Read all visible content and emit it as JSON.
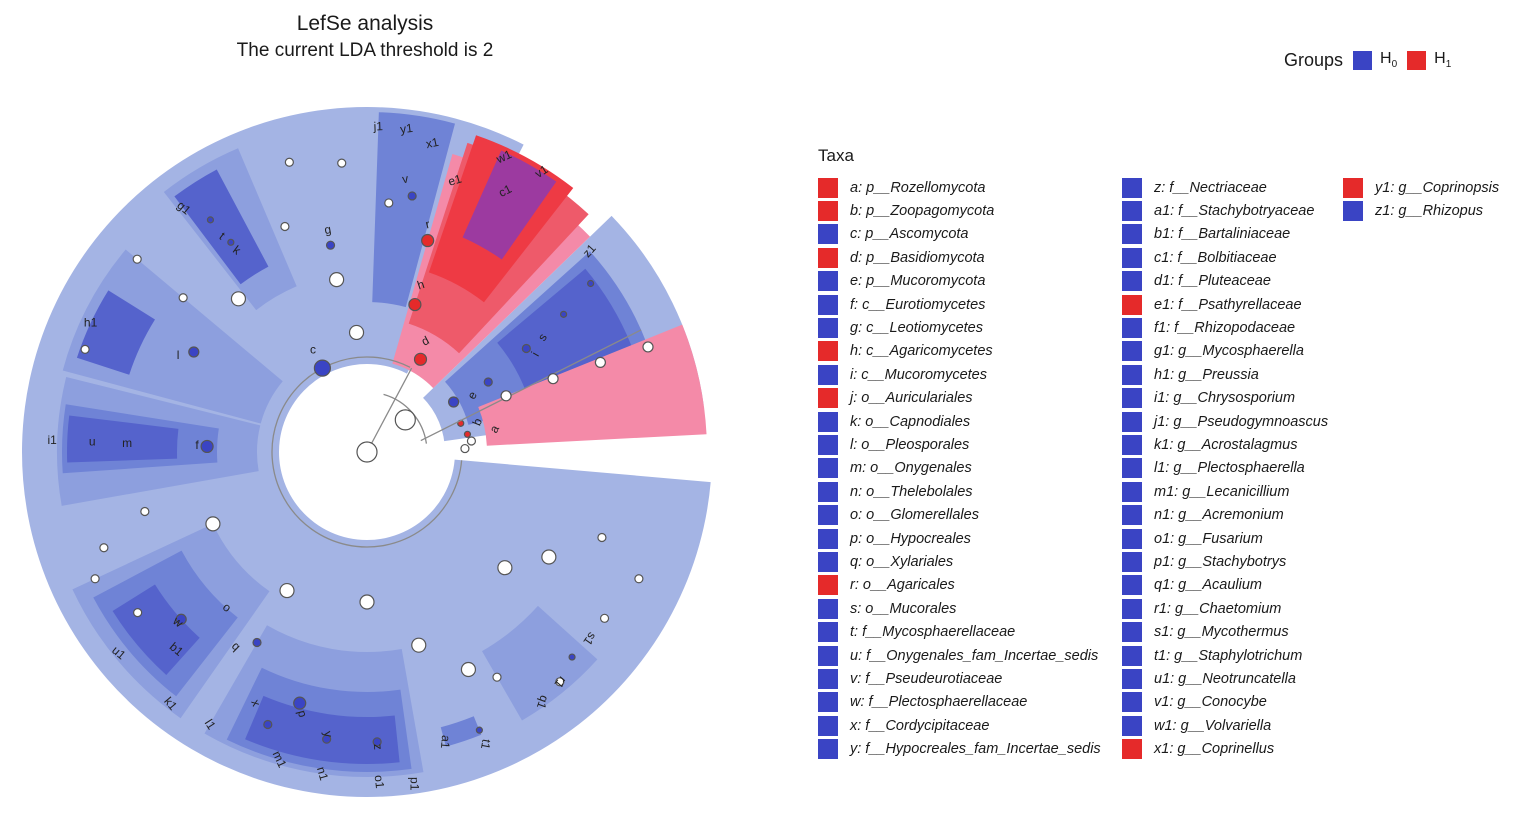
{
  "title": "LefSe analysis",
  "subtitle": "The current LDA threshold is 2",
  "legend": {
    "label": "Groups",
    "groups": [
      {
        "name": "H",
        "sub": "0",
        "color": "#3a44c4"
      },
      {
        "name": "H",
        "sub": "1",
        "color": "#e52a2a"
      }
    ]
  },
  "taxa_title": "Taxa",
  "colors": {
    "H0": "#3a44c4",
    "H1": "#e52a2a",
    "background": "#a4b4e4"
  },
  "taxa_columns": [
    [
      {
        "text": "a: p__Rozellomycota",
        "group": "H1"
      },
      {
        "text": "b: p__Zoopagomycota",
        "group": "H1"
      },
      {
        "text": "c: p__Ascomycota",
        "group": "H0"
      },
      {
        "text": "d: p__Basidiomycota",
        "group": "H1"
      },
      {
        "text": "e: p__Mucoromycota",
        "group": "H0"
      },
      {
        "text": "f: c__Eurotiomycetes",
        "group": "H0"
      },
      {
        "text": "g: c__Leotiomycetes",
        "group": "H0"
      },
      {
        "text": "h: c__Agaricomycetes",
        "group": "H1"
      },
      {
        "text": "i: c__Mucoromycetes",
        "group": "H0"
      },
      {
        "text": "j: o__Auriculariales",
        "group": "H1"
      },
      {
        "text": "k: o__Capnodiales",
        "group": "H0"
      },
      {
        "text": "l: o__Pleosporales",
        "group": "H0"
      },
      {
        "text": "m: o__Onygenales",
        "group": "H0"
      },
      {
        "text": "n: o__Thelebolales",
        "group": "H0"
      },
      {
        "text": "o: o__Glomerellales",
        "group": "H0"
      },
      {
        "text": "p: o__Hypocreales",
        "group": "H0"
      },
      {
        "text": "q: o__Xylariales",
        "group": "H0"
      },
      {
        "text": "r: o__Agaricales",
        "group": "H1"
      },
      {
        "text": "s: o__Mucorales",
        "group": "H0"
      },
      {
        "text": "t: f__Mycosphaerellaceae",
        "group": "H0"
      },
      {
        "text": "u: f__Onygenales_fam_Incertae_sedis",
        "group": "H0"
      },
      {
        "text": "v: f__Pseudeurotiaceae",
        "group": "H0"
      },
      {
        "text": "w: f__Plectosphaerellaceae",
        "group": "H0"
      },
      {
        "text": "x: f__Cordycipitaceae",
        "group": "H0"
      },
      {
        "text": "y: f__Hypocreales_fam_Incertae_sedis",
        "group": "H0"
      }
    ],
    [
      {
        "text": "z: f__Nectriaceae",
        "group": "H0"
      },
      {
        "text": "a1: f__Stachybotryaceae",
        "group": "H0"
      },
      {
        "text": "b1: f__Bartaliniaceae",
        "group": "H0"
      },
      {
        "text": "c1: f__Bolbitiaceae",
        "group": "H0"
      },
      {
        "text": "d1: f__Pluteaceae",
        "group": "H0"
      },
      {
        "text": "e1: f__Psathyrellaceae",
        "group": "H1"
      },
      {
        "text": "f1: f__Rhizopodaceae",
        "group": "H0"
      },
      {
        "text": "g1: g__Mycosphaerella",
        "group": "H0"
      },
      {
        "text": "h1: g__Preussia",
        "group": "H0"
      },
      {
        "text": "i1: g__Chrysosporium",
        "group": "H0"
      },
      {
        "text": "j1: g__Pseudogymnoascus",
        "group": "H0"
      },
      {
        "text": "k1: g__Acrostalagmus",
        "group": "H0"
      },
      {
        "text": "l1: g__Plectosphaerella",
        "group": "H0"
      },
      {
        "text": "m1: g__Lecanicillium",
        "group": "H0"
      },
      {
        "text": "n1: g__Acremonium",
        "group": "H0"
      },
      {
        "text": "o1: g__Fusarium",
        "group": "H0"
      },
      {
        "text": "p1: g__Stachybotrys",
        "group": "H0"
      },
      {
        "text": "q1: g__Acaulium",
        "group": "H0"
      },
      {
        "text": "r1: g__Chaetomium",
        "group": "H0"
      },
      {
        "text": "s1: g__Mycothermus",
        "group": "H0"
      },
      {
        "text": "t1: g__Staphylotrichum",
        "group": "H0"
      },
      {
        "text": "u1: g__Neotruncatella",
        "group": "H0"
      },
      {
        "text": "v1: g__Conocybe",
        "group": "H0"
      },
      {
        "text": "w1: g__Volvariella",
        "group": "H0"
      },
      {
        "text": "x1: g__Coprinellus",
        "group": "H1"
      }
    ],
    [
      {
        "text": "y1: g__Coprinopsis",
        "group": "H1"
      },
      {
        "text": "z1: g__Rhizopus",
        "group": "H0"
      }
    ]
  ],
  "cladogram": {
    "node_labels": [
      {
        "id": "a",
        "group": "H1"
      },
      {
        "id": "b",
        "group": "H1"
      },
      {
        "id": "c",
        "group": "H0"
      },
      {
        "id": "d",
        "group": "H1"
      },
      {
        "id": "e",
        "group": "H0"
      },
      {
        "id": "f",
        "group": "H0"
      },
      {
        "id": "g",
        "group": "H0"
      },
      {
        "id": "h",
        "group": "H1"
      },
      {
        "id": "i",
        "group": "H0"
      },
      {
        "id": "j",
        "group": "H1"
      },
      {
        "id": "k",
        "group": "H0"
      },
      {
        "id": "l",
        "group": "H0"
      },
      {
        "id": "m",
        "group": "H0"
      },
      {
        "id": "n",
        "group": "H0"
      },
      {
        "id": "o",
        "group": "H0"
      },
      {
        "id": "p",
        "group": "H0"
      },
      {
        "id": "q",
        "group": "H0"
      },
      {
        "id": "r",
        "group": "H1"
      },
      {
        "id": "s",
        "group": "H0"
      },
      {
        "id": "t",
        "group": "H0"
      },
      {
        "id": "u",
        "group": "H0"
      },
      {
        "id": "v",
        "group": "H0"
      },
      {
        "id": "w",
        "group": "H0"
      },
      {
        "id": "x",
        "group": "H0"
      },
      {
        "id": "y",
        "group": "H0"
      },
      {
        "id": "z",
        "group": "H0"
      },
      {
        "id": "a1",
        "group": "H0"
      },
      {
        "id": "b1",
        "group": "H0"
      },
      {
        "id": "c1",
        "group": "H0"
      },
      {
        "id": "d1",
        "group": "H0"
      },
      {
        "id": "e1",
        "group": "H1"
      },
      {
        "id": "f1",
        "group": "H0"
      },
      {
        "id": "g1",
        "group": "H0"
      },
      {
        "id": "h1",
        "group": "H0"
      },
      {
        "id": "i1",
        "group": "H0"
      },
      {
        "id": "j1",
        "group": "H0"
      },
      {
        "id": "k1",
        "group": "H0"
      },
      {
        "id": "l1",
        "group": "H0"
      },
      {
        "id": "m1",
        "group": "H0"
      },
      {
        "id": "n1",
        "group": "H0"
      },
      {
        "id": "o1",
        "group": "H0"
      },
      {
        "id": "p1",
        "group": "H0"
      },
      {
        "id": "q1",
        "group": "H0"
      },
      {
        "id": "r1",
        "group": "H0"
      },
      {
        "id": "s1",
        "group": "H0"
      },
      {
        "id": "t1",
        "group": "H0"
      },
      {
        "id": "u1",
        "group": "H0"
      },
      {
        "id": "v1",
        "group": "H0"
      },
      {
        "id": "w1",
        "group": "H0"
      },
      {
        "id": "x1",
        "group": "H1"
      },
      {
        "id": "y1",
        "group": "H1"
      },
      {
        "id": "z1",
        "group": "H0"
      }
    ]
  }
}
